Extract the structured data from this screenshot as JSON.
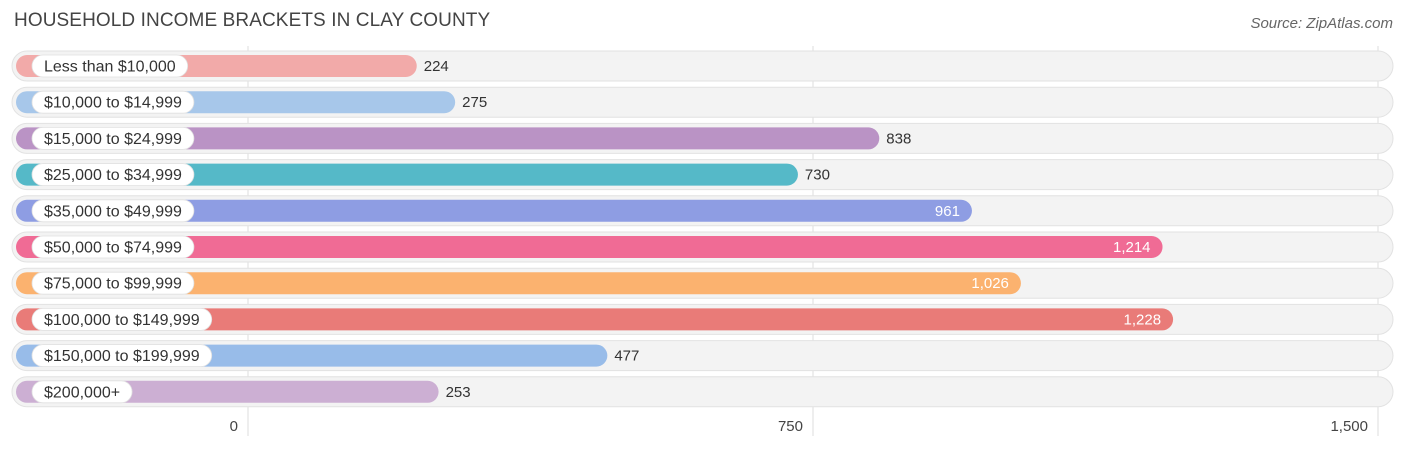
{
  "chart_data": {
    "type": "bar",
    "orientation": "horizontal",
    "title": "HOUSEHOLD INCOME BRACKETS IN CLAY COUNTY",
    "source": "Source: ZipAtlas.com",
    "xlabel": "",
    "ylabel": "",
    "xlim": [
      0,
      1500
    ],
    "ticks": [
      {
        "value": 0,
        "label": "0"
      },
      {
        "value": 750,
        "label": "750"
      },
      {
        "value": 1500,
        "label": "1,500"
      }
    ],
    "categories": [
      "Less than $10,000",
      "$10,000 to $14,999",
      "$15,000 to $24,999",
      "$25,000 to $34,999",
      "$35,000 to $49,999",
      "$50,000 to $74,999",
      "$75,000 to $99,999",
      "$100,000 to $149,999",
      "$150,000 to $199,999",
      "$200,000+"
    ],
    "values": [
      224,
      275,
      838,
      730,
      961,
      1214,
      1026,
      1228,
      477,
      253
    ],
    "value_labels": [
      "224",
      "275",
      "838",
      "730",
      "961",
      "1,214",
      "1,026",
      "1,228",
      "477",
      "253"
    ],
    "colors": [
      "#f2aaa9",
      "#a7c7ea",
      "#ba93c5",
      "#55b9c8",
      "#8e9de3",
      "#f06b95",
      "#fbb26f",
      "#e97b78",
      "#98bce9",
      "#ccafd3"
    ],
    "label_inside": [
      false,
      false,
      false,
      false,
      true,
      true,
      true,
      true,
      false,
      false
    ]
  }
}
